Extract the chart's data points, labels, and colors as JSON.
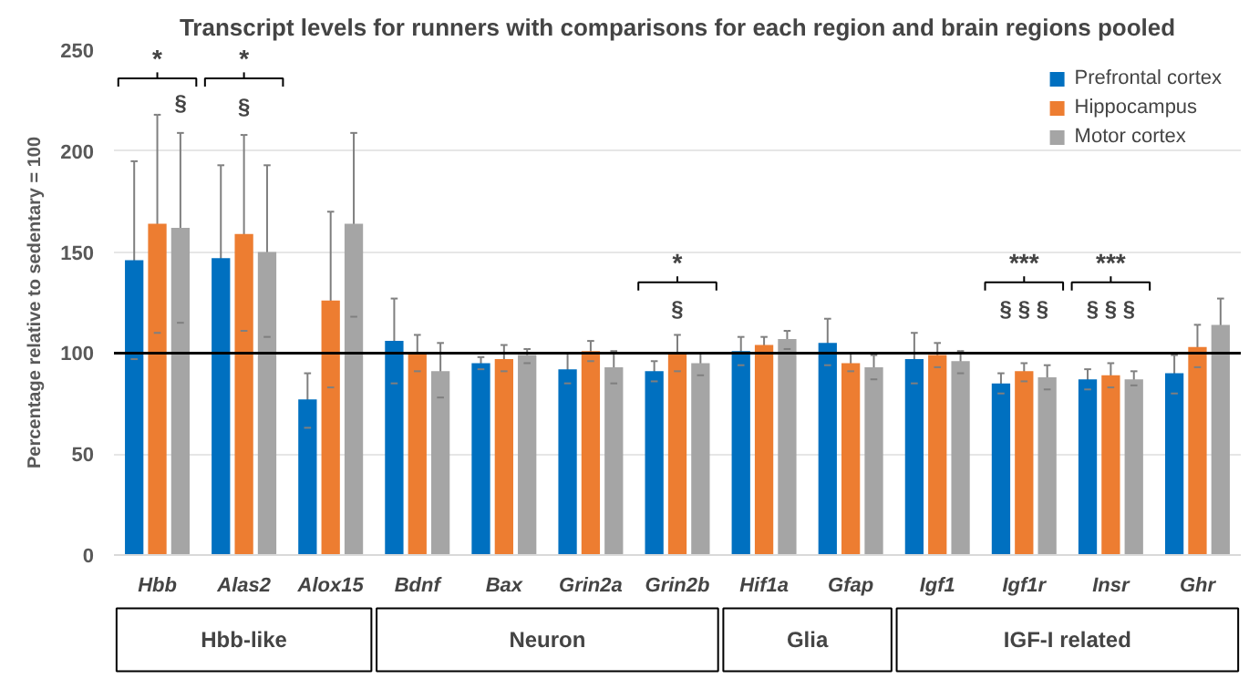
{
  "chart_data": {
    "type": "bar",
    "title": "Transcript levels for runners with comparisons for each region and brain regions pooled",
    "ylabel": "Percentage relative to sedentary = 100",
    "categories": [
      "Hbb",
      "Alas2",
      "Alox15",
      "Bdnf",
      "Bax",
      "Grin2a",
      "Grin2b",
      "Hif1a",
      "Gfap",
      "Igf1",
      "Igf1r",
      "Insr",
      "Ghr"
    ],
    "series": [
      {
        "name": "Prefrontal cortex",
        "color": "#0070c0",
        "values": [
          146,
          147,
          77,
          106,
          95,
          92,
          91,
          101,
          105,
          97,
          85,
          87,
          90
        ],
        "errors": [
          [
            97,
            195
          ],
          [
            100,
            193
          ],
          [
            63,
            90
          ],
          [
            85,
            127
          ],
          [
            92,
            98
          ],
          [
            85,
            100
          ],
          [
            86,
            96
          ],
          [
            94,
            108
          ],
          [
            94,
            117
          ],
          [
            85,
            110
          ],
          [
            80,
            90
          ],
          [
            82,
            92
          ],
          [
            80,
            99
          ]
        ]
      },
      {
        "name": "Hippocampus",
        "color": "#ed7d31",
        "values": [
          164,
          159,
          126,
          100,
          97,
          101,
          100,
          104,
          95,
          99,
          91,
          89,
          103
        ],
        "errors": [
          [
            110,
            218
          ],
          [
            111,
            208
          ],
          [
            83,
            170
          ],
          [
            91,
            109
          ],
          [
            91,
            104
          ],
          [
            96,
            106
          ],
          [
            91,
            109
          ],
          [
            100,
            108
          ],
          [
            91,
            100
          ],
          [
            93,
            105
          ],
          [
            86,
            95
          ],
          [
            83,
            95
          ],
          [
            93,
            114
          ]
        ]
      },
      {
        "name": "Motor cortex",
        "color": "#a5a5a5",
        "values": [
          162,
          150,
          164,
          91,
          99,
          93,
          95,
          107,
          93,
          96,
          88,
          87,
          114
        ],
        "errors": [
          [
            115,
            209
          ],
          [
            108,
            193
          ],
          [
            118,
            209
          ],
          [
            78,
            105
          ],
          [
            95,
            102
          ],
          [
            85,
            101
          ],
          [
            89,
            100
          ],
          [
            102,
            111
          ],
          [
            87,
            99
          ],
          [
            90,
            101
          ],
          [
            82,
            94
          ],
          [
            84,
            91
          ],
          [
            100,
            127
          ]
        ]
      }
    ],
    "ylim": [
      0,
      250
    ],
    "yticks": [
      0,
      50,
      100,
      150,
      200,
      250
    ],
    "grid": "y",
    "legend": "top right",
    "ref_lines": [
      {
        "axis": "y",
        "value": 100,
        "color": "#000000"
      }
    ],
    "annotations": [
      "*",
      "§",
      "*",
      "§",
      "*",
      "§",
      "***",
      "§ § §",
      "***",
      "§ § §",
      "Hbb-like",
      "Neuron",
      "Glia",
      "IGF-I related"
    ]
  }
}
